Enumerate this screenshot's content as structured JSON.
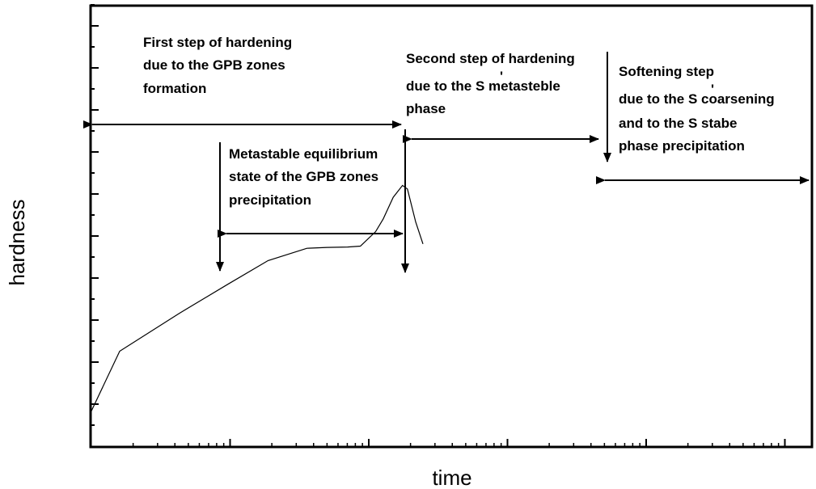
{
  "chart_data": {
    "type": "line",
    "title": "",
    "xlabel": "time",
    "ylabel": "hardness",
    "x_scale": "log",
    "grid": false,
    "tick_labels_shown": false,
    "series": [
      {
        "points": [
          [
            1.0,
            0.08
          ],
          [
            1.6,
            0.216
          ],
          [
            4.3,
            0.302
          ],
          [
            9.6,
            0.368
          ],
          [
            18.8,
            0.422
          ],
          [
            35.8,
            0.45
          ],
          [
            50.0,
            0.452
          ],
          [
            70.3,
            0.453
          ],
          [
            87.0,
            0.455
          ],
          [
            112.1,
            0.488
          ],
          [
            127.1,
            0.517
          ],
          [
            150.0,
            0.566
          ],
          [
            175.0,
            0.593
          ],
          [
            190.0,
            0.585
          ],
          [
            218.0,
            0.51
          ],
          [
            246.0,
            0.46
          ]
        ]
      }
    ],
    "annotations": [
      {
        "id": "gpb-formation",
        "lines": [
          "First step of hardening",
          "due to the GPB zones",
          "formation"
        ]
      },
      {
        "id": "gpb-equilibrium",
        "lines": [
          "Metastable equilibrium",
          "state of the GPB zones",
          "precipitation"
        ]
      },
      {
        "id": "s-metastable",
        "lines": [
          "Second step of hardening",
          "due to the S metasteble",
          "phase"
        ]
      },
      {
        "id": "softening",
        "lines": [
          "Softening step",
          "due to the S coarsening",
          "and to the S stabe",
          "phase precipitation"
        ]
      }
    ],
    "prime_mark": "'"
  }
}
